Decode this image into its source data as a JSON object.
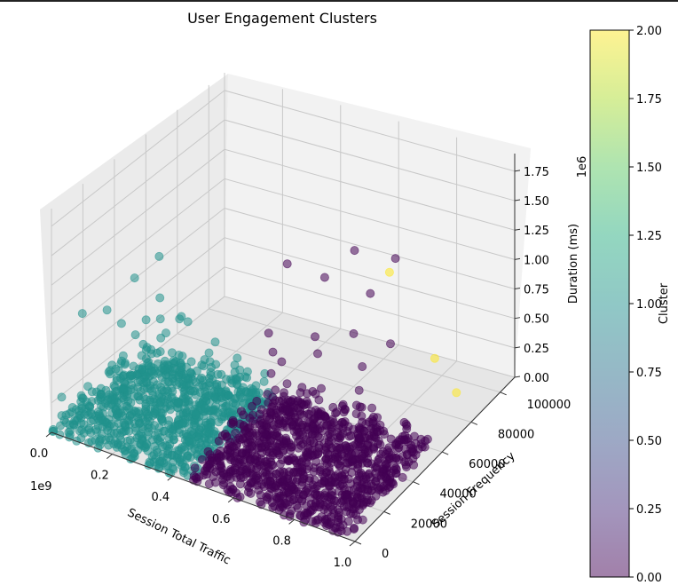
{
  "chart_data": {
    "type": "scatter",
    "projection": "3d",
    "title": "User Engagement Clusters",
    "xlabel": "Session Total Traffic",
    "ylabel": "Session Frequency",
    "zlabel": "Duration (ms)",
    "x_offset_label": "1e9",
    "z_offset_label": "1e6",
    "x_ticks": [
      "0.0",
      "0.2",
      "0.4",
      "0.6",
      "0.8",
      "1.0"
    ],
    "y_ticks": [
      "0",
      "20000",
      "40000",
      "60000",
      "80000",
      "100000"
    ],
    "z_ticks": [
      "0.00",
      "0.25",
      "0.50",
      "0.75",
      "1.00",
      "1.25",
      "1.50",
      "1.75"
    ],
    "xlim": [
      0,
      1.0
    ],
    "ylim": [
      0,
      110000
    ],
    "zlim": [
      0,
      1.9
    ],
    "grid": true,
    "colorbar": {
      "label": "Cluster",
      "ticks": [
        "0.00",
        "0.25",
        "0.50",
        "0.75",
        "1.00",
        "1.25",
        "1.50",
        "1.75",
        "2.00"
      ],
      "range": [
        0,
        2
      ]
    },
    "series": [
      {
        "name": "0",
        "color": "#440154",
        "note_points": [
          [
            0.62,
            20000,
            0.45
          ],
          [
            0.55,
            35000,
            0.6
          ],
          [
            0.7,
            15000,
            0.4
          ],
          [
            0.48,
            50000,
            0.55
          ],
          [
            0.58,
            60000,
            0.5
          ],
          [
            0.66,
            45000,
            0.35
          ],
          [
            0.74,
            25000,
            0.42
          ],
          [
            0.52,
            70000,
            0.48
          ],
          [
            0.8,
            30000,
            0.3
          ],
          [
            0.6,
            80000,
            0.45
          ],
          [
            0.45,
            90000,
            0.7
          ],
          [
            0.5,
            100000,
            0.85
          ],
          [
            0.62,
            104000,
            0.82
          ],
          [
            0.4,
            75000,
            0.95
          ],
          [
            0.72,
            60000,
            0.3
          ],
          [
            0.85,
            10000,
            0.25
          ],
          [
            0.78,
            50000,
            0.2
          ],
          [
            0.56,
            40000,
            0.65
          ],
          [
            0.68,
            70000,
            0.35
          ],
          [
            0.9,
            20000,
            0.1
          ],
          [
            0.82,
            40000,
            0.22
          ],
          [
            0.44,
            55000,
            0.62
          ],
          [
            0.64,
            30000,
            0.5
          ],
          [
            0.7,
            85000,
            0.38
          ],
          [
            0.58,
            95000,
            0.6
          ]
        ],
        "note": "dense region x 0.45-0.97, y 0-60000, z 0-0.3"
      },
      {
        "name": "1",
        "color": "#21918c",
        "note_points": [
          [
            0.05,
            10000,
            0.95
          ],
          [
            0.08,
            20000,
            0.9
          ],
          [
            0.12,
            30000,
            1.1
          ],
          [
            0.15,
            40000,
            1.2
          ],
          [
            0.2,
            15000,
            0.85
          ],
          [
            0.25,
            25000,
            0.8
          ],
          [
            0.1,
            50000,
            0.7
          ],
          [
            0.18,
            35000,
            0.75
          ],
          [
            0.3,
            20000,
            0.6
          ],
          [
            0.22,
            45000,
            0.65
          ],
          [
            0.28,
            10000,
            0.5
          ],
          [
            0.35,
            30000,
            0.55
          ],
          [
            0.05,
            35000,
            0.6
          ],
          [
            0.14,
            55000,
            0.5
          ],
          [
            0.32,
            40000,
            0.45
          ],
          [
            0.26,
            55000,
            0.4
          ],
          [
            0.4,
            15000,
            0.35
          ],
          [
            0.12,
            60000,
            0.45
          ],
          [
            0.36,
            50000,
            0.4
          ],
          [
            0.08,
            45000,
            0.55
          ]
        ],
        "note": "dense region x 0-0.45, y 0-60000, z 0-0.3"
      },
      {
        "name": "2",
        "color": "#fde725",
        "note_points": [
          [
            0.75,
            105000,
            0.05
          ],
          [
            0.9,
            90000,
            0.05
          ],
          [
            0.62,
            100000,
            0.75
          ]
        ]
      }
    ]
  }
}
